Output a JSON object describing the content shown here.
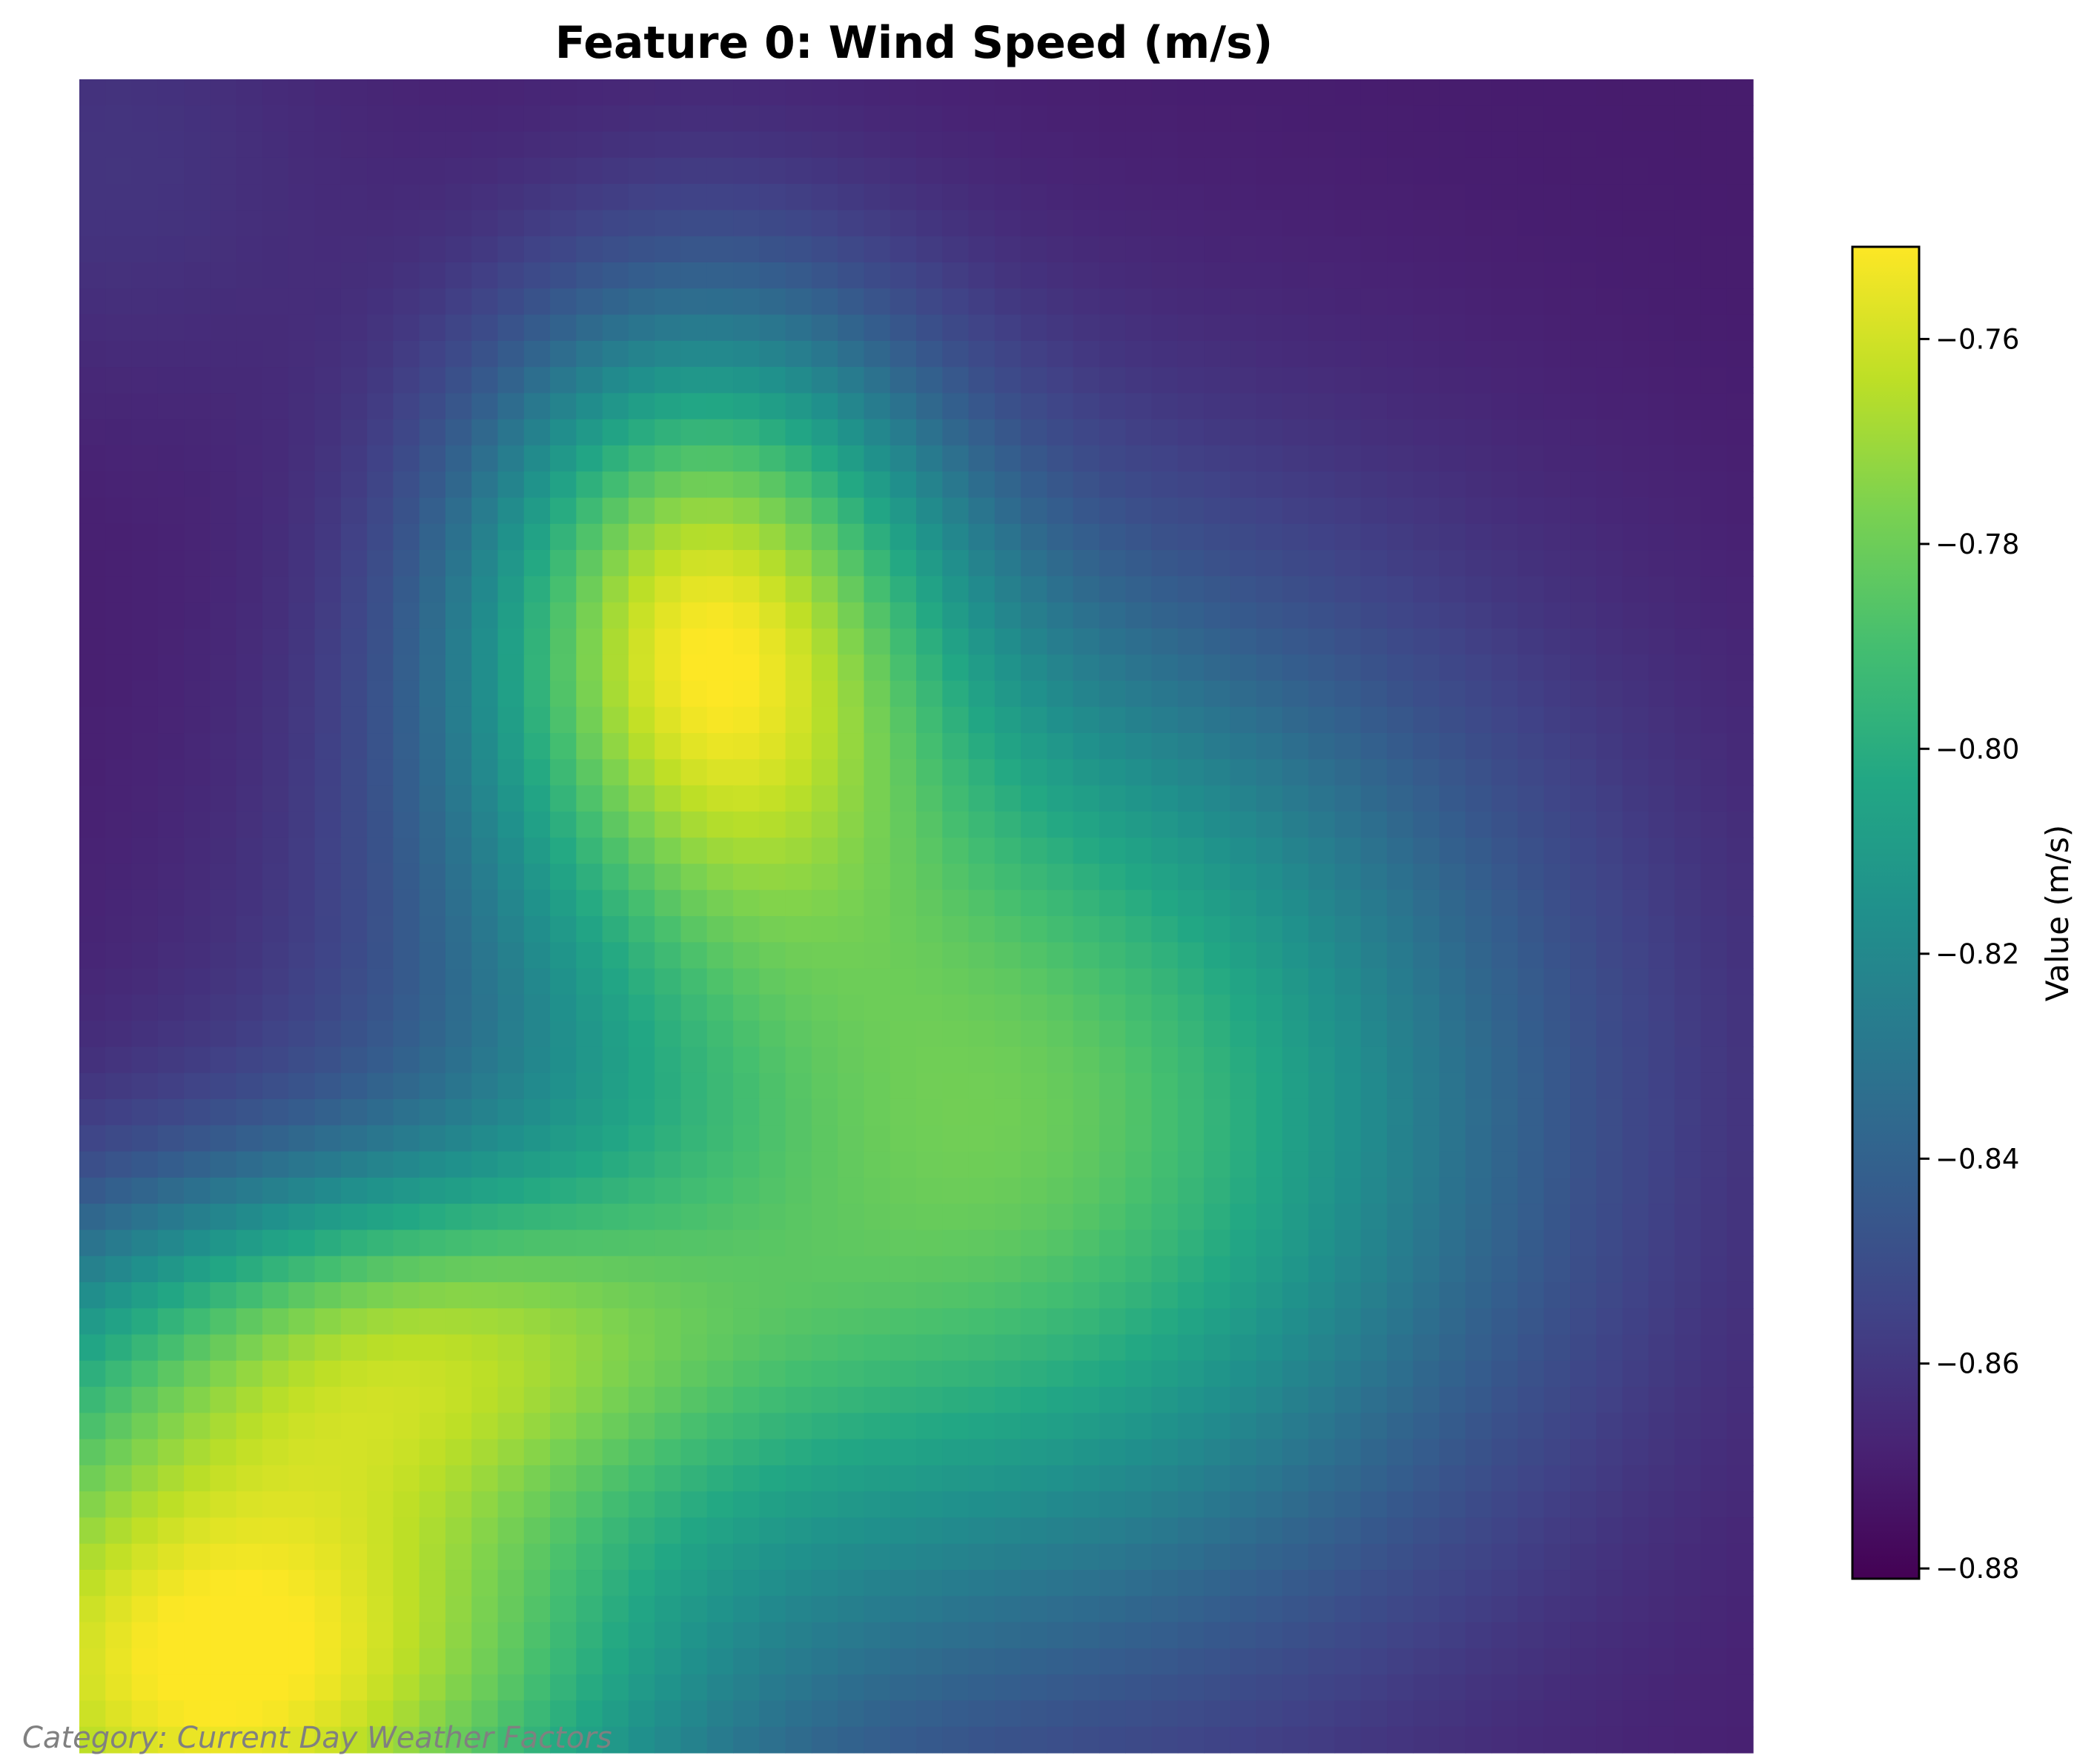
{
  "chart_data": {
    "type": "heatmap",
    "title": "Feature 0: Wind Speed (m/s)",
    "colormap": "viridis",
    "grid": false,
    "axes_visible": false,
    "rows": 64,
    "cols": 64,
    "value_range": [
      -0.881,
      -0.751
    ],
    "field_model": {
      "description": "smooth field sampled at fractional position (u = column 0..1 left→right, v = row 0..1 top→bottom)",
      "base": -0.871,
      "bumps": [
        {
          "u": 0.08,
          "v": 0.95,
          "amp": 0.12,
          "su": 0.26,
          "sv": 0.2
        },
        {
          "u": 0.37,
          "v": 0.32,
          "amp": 0.095,
          "su": 0.14,
          "sv": 0.18
        },
        {
          "u": 0.55,
          "v": 0.62,
          "amp": 0.09,
          "su": 0.3,
          "sv": 0.3
        },
        {
          "u": 0.2,
          "v": 0.75,
          "amp": 0.05,
          "su": 0.2,
          "sv": 0.1
        },
        {
          "u": 0.02,
          "v": 0.05,
          "amp": 0.01,
          "su": 0.15,
          "sv": 0.15
        }
      ]
    },
    "colorbar": {
      "label": "Value (m/s)",
      "ticks": [
        "−0.88",
        "−0.86",
        "−0.84",
        "−0.82",
        "−0.80",
        "−0.78",
        "−0.76"
      ],
      "tick_values": [
        -0.88,
        -0.86,
        -0.84,
        -0.82,
        -0.8,
        -0.78,
        -0.76
      ]
    }
  },
  "footnote": "Category: Current Day Weather Factors"
}
